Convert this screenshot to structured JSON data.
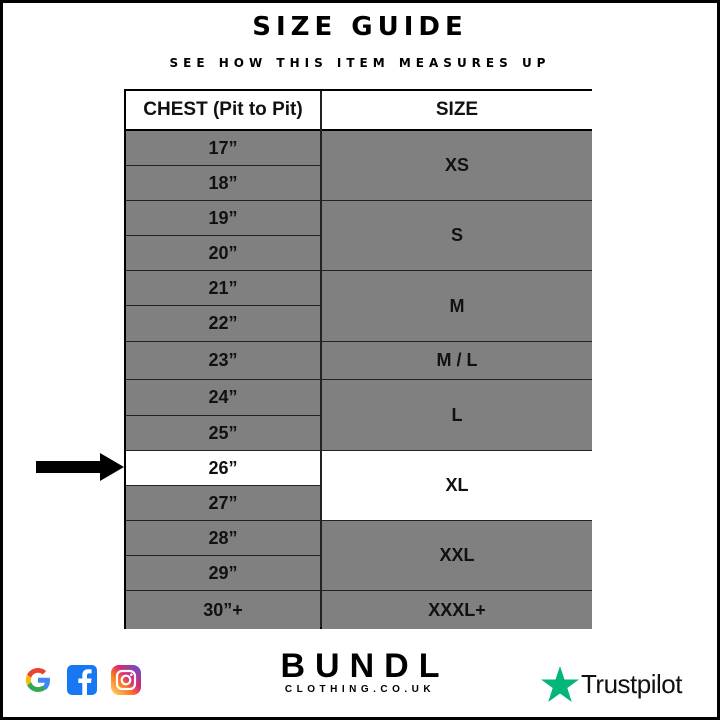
{
  "title": "SIZE GUIDE",
  "subtitle": "SEE HOW THIS ITEM MEASURES UP",
  "table": {
    "headers": [
      "CHEST (Pit to Pit)",
      "SIZE"
    ],
    "chest": [
      "17”",
      "18”",
      "19”",
      "20”",
      "21”",
      "22”",
      "23”",
      "24”",
      "25”",
      "26”",
      "27”",
      "28”",
      "29”",
      "30”+"
    ],
    "sizes": [
      {
        "label": "XS",
        "rows": [
          0,
          1
        ]
      },
      {
        "label": "S",
        "rows": [
          2,
          3
        ]
      },
      {
        "label": "M",
        "rows": [
          4,
          5
        ]
      },
      {
        "label": "M / L",
        "rows": [
          6,
          6
        ]
      },
      {
        "label": "L",
        "rows": [
          7,
          8
        ]
      },
      {
        "label": "XL",
        "rows": [
          9,
          10
        ]
      },
      {
        "label": "XXL",
        "rows": [
          11,
          12
        ]
      },
      {
        "label": "XXXL+",
        "rows": [
          13,
          13
        ]
      }
    ],
    "highlighted_chest": "26”",
    "highlighted_size": "XL",
    "row_color": "#808080",
    "highlight_color": "#ffffff"
  },
  "footer": {
    "social_icons": [
      "google-icon",
      "facebook-icon",
      "instagram-icon"
    ],
    "brand": "BUNDL",
    "brand_url": "CLOTHING.CO.UK",
    "trustpilot": "Trustpilot",
    "trustpilot_color": "#00b67a"
  }
}
